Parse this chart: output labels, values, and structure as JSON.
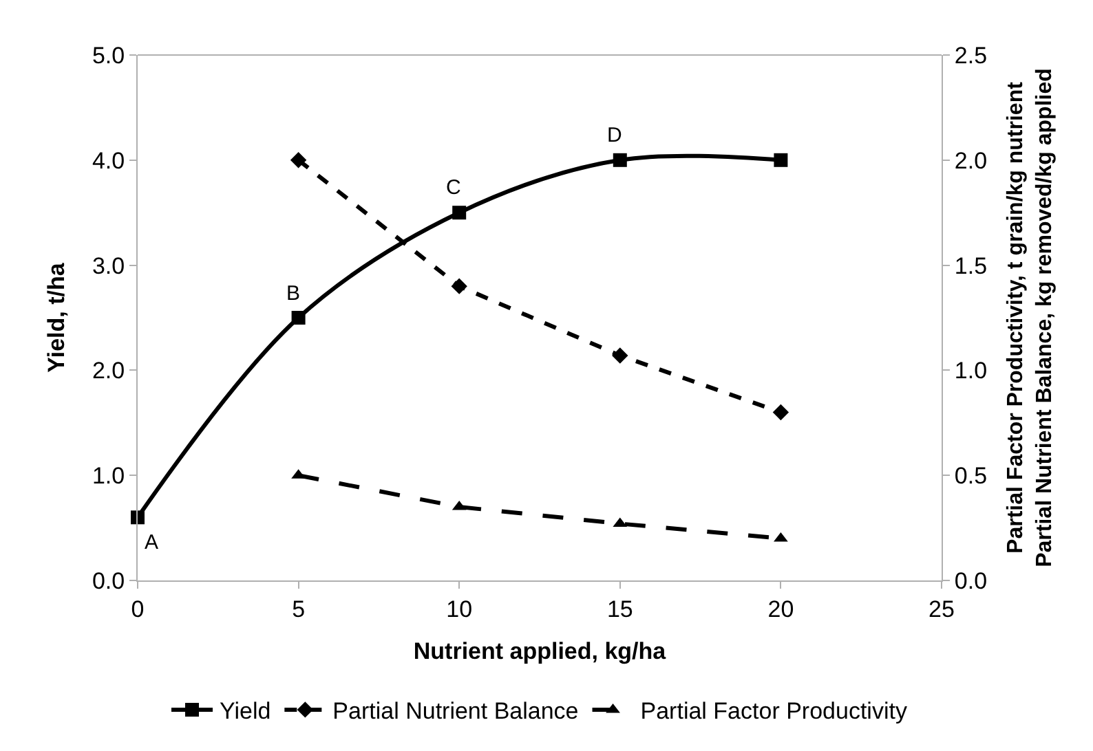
{
  "chart_data": {
    "type": "line",
    "xlabel": "Nutrient applied, kg/ha",
    "ylabel": "Yield, t/ha",
    "y2label": "Partial Factor Productivity, t grain/kg nutrient\nPartial Nutrient Balance, kg removed/kg applied",
    "xlim": [
      0,
      25
    ],
    "xticks": [
      0,
      5,
      10,
      15,
      20,
      25
    ],
    "ylim": [
      0,
      5
    ],
    "yticks": [
      {
        "value": 0,
        "label": "0.0"
      },
      {
        "value": 1,
        "label": "1.0"
      },
      {
        "value": 2,
        "label": "2.0"
      },
      {
        "value": 3,
        "label": "3.0"
      },
      {
        "value": 4,
        "label": "4.0"
      },
      {
        "value": 5,
        "label": "5.0"
      }
    ],
    "y2lim": [
      0,
      2.5
    ],
    "y2ticks": [
      {
        "value": 0,
        "label": "0.0"
      },
      {
        "value": 0.5,
        "label": "0.5"
      },
      {
        "value": 1,
        "label": "1.0"
      },
      {
        "value": 1.5,
        "label": "1.5"
      },
      {
        "value": 2,
        "label": "2.0"
      },
      {
        "value": 2.5,
        "label": "2.5"
      }
    ],
    "legend": "bottom",
    "series": [
      {
        "name": "Yield",
        "color": "#000000",
        "x": [
          0,
          5,
          10,
          15,
          20
        ],
        "values": [
          0.6,
          2.5,
          3.5,
          4.0,
          4.0
        ],
        "marker": "square",
        "line_style": "solid"
      },
      {
        "name": "Partial Nutrient Balance",
        "color": "#000000",
        "axis": "y2",
        "x": [
          5,
          10,
          15,
          20
        ],
        "values": [
          2.0,
          1.4,
          1.07,
          0.8
        ],
        "marker": "diamond",
        "line_style": "dashed"
      },
      {
        "name": "Partial Factor Productivity",
        "color": "#000000",
        "axis": "y2",
        "x": [
          5,
          10,
          15,
          20
        ],
        "values": [
          0.5,
          0.35,
          0.27,
          0.2
        ],
        "marker": "triangle",
        "line_style": "dashed"
      }
    ],
    "annotations": [
      {
        "text": "A",
        "x": 0,
        "y": 0.6
      },
      {
        "text": "B",
        "x": 5,
        "y": 2.5
      },
      {
        "text": "C",
        "x": 10,
        "y": 3.5
      },
      {
        "text": "D",
        "x": 15,
        "y": 4.0
      }
    ]
  }
}
